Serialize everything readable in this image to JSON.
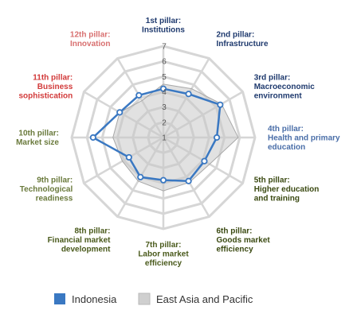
{
  "chart_data": {
    "type": "radar",
    "r_range": [
      1,
      7
    ],
    "r_ticks": [
      1,
      2,
      3,
      4,
      5,
      6,
      7
    ],
    "grid": true,
    "legend_position": "bottom",
    "axes": [
      {
        "line1": "1st pillar:",
        "line2": "Institutions",
        "line3": "",
        "color": "#1f3a6e"
      },
      {
        "line1": "2nd pillar:",
        "line2": "Infrastructure",
        "line3": "",
        "color": "#1f3a6e"
      },
      {
        "line1": "3rd pillar:",
        "line2": "Macroeconomic",
        "line3": "environment",
        "color": "#1f3a6e"
      },
      {
        "line1": "4th pillar:",
        "line2": "Health and primary",
        "line3": "education",
        "color": "#4a6ea8"
      },
      {
        "line1": "5th pillar:",
        "line2": "Higher education",
        "line3": "and training",
        "color": "#3b4a12"
      },
      {
        "line1": "6th pillar:",
        "line2": "Goods market",
        "line3": "efficiency",
        "color": "#3b4a12"
      },
      {
        "line1": "7th pillar:",
        "line2": "Labor market",
        "line3": "efficiency",
        "color": "#4a5a1c"
      },
      {
        "line1": "8th pillar:",
        "line2": "Financial market",
        "line3": "development",
        "color": "#4a5a1c"
      },
      {
        "line1": "9th pillar:",
        "line2": "Technological",
        "line3": "readiness",
        "color": "#6a7a3c"
      },
      {
        "line1": "10th pillar:",
        "line2": "Market size",
        "line3": "",
        "color": "#6a7a3c"
      },
      {
        "line1": "11th pillar:",
        "line2": "Business",
        "line3": "sophistication",
        "color": "#d23a3a"
      },
      {
        "line1": "12th pillar:",
        "line2": "Innovation",
        "line3": "",
        "color": "#d87070"
      }
    ],
    "series": [
      {
        "name": "Indonesia",
        "color": "#3a78c2",
        "values": [
          4.2,
          4.3,
          5.3,
          4.5,
          4.1,
          4.3,
          3.8,
          4.0,
          3.6,
          5.6,
          4.3,
          4.2
        ]
      },
      {
        "name": "East Asia and Pacific",
        "color": "#c8c8c8",
        "values": [
          4.5,
          4.7,
          5.4,
          5.9,
          4.5,
          4.4,
          4.5,
          4.3,
          4.1,
          4.3,
          4.3,
          3.8
        ]
      }
    ]
  }
}
